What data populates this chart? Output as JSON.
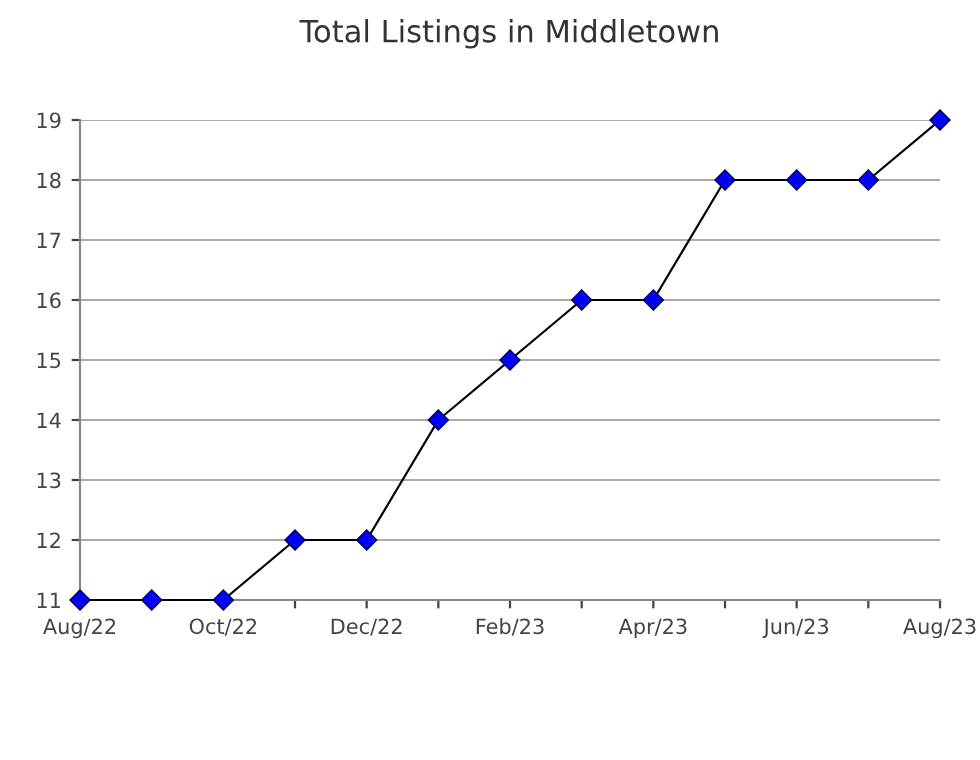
{
  "chart_data": {
    "type": "line",
    "title": "Total Listings in Middletown",
    "categories": [
      "Aug/22",
      null,
      "Oct/22",
      null,
      "Dec/22",
      null,
      "Feb/23",
      null,
      "Apr/23",
      null,
      "Jun/23",
      null,
      "Aug/23"
    ],
    "series": [
      {
        "color": "#0000ff",
        "values": [
          11,
          11,
          11,
          12,
          12,
          14,
          15,
          16,
          16,
          18,
          18,
          18,
          19
        ]
      }
    ],
    "ylim": [
      11,
      19
    ],
    "yticks": [
      11,
      12,
      13,
      14,
      15,
      16,
      17,
      18,
      19
    ],
    "grid": "y",
    "marker": "diamond",
    "line_style": "solid",
    "legend": false
  }
}
